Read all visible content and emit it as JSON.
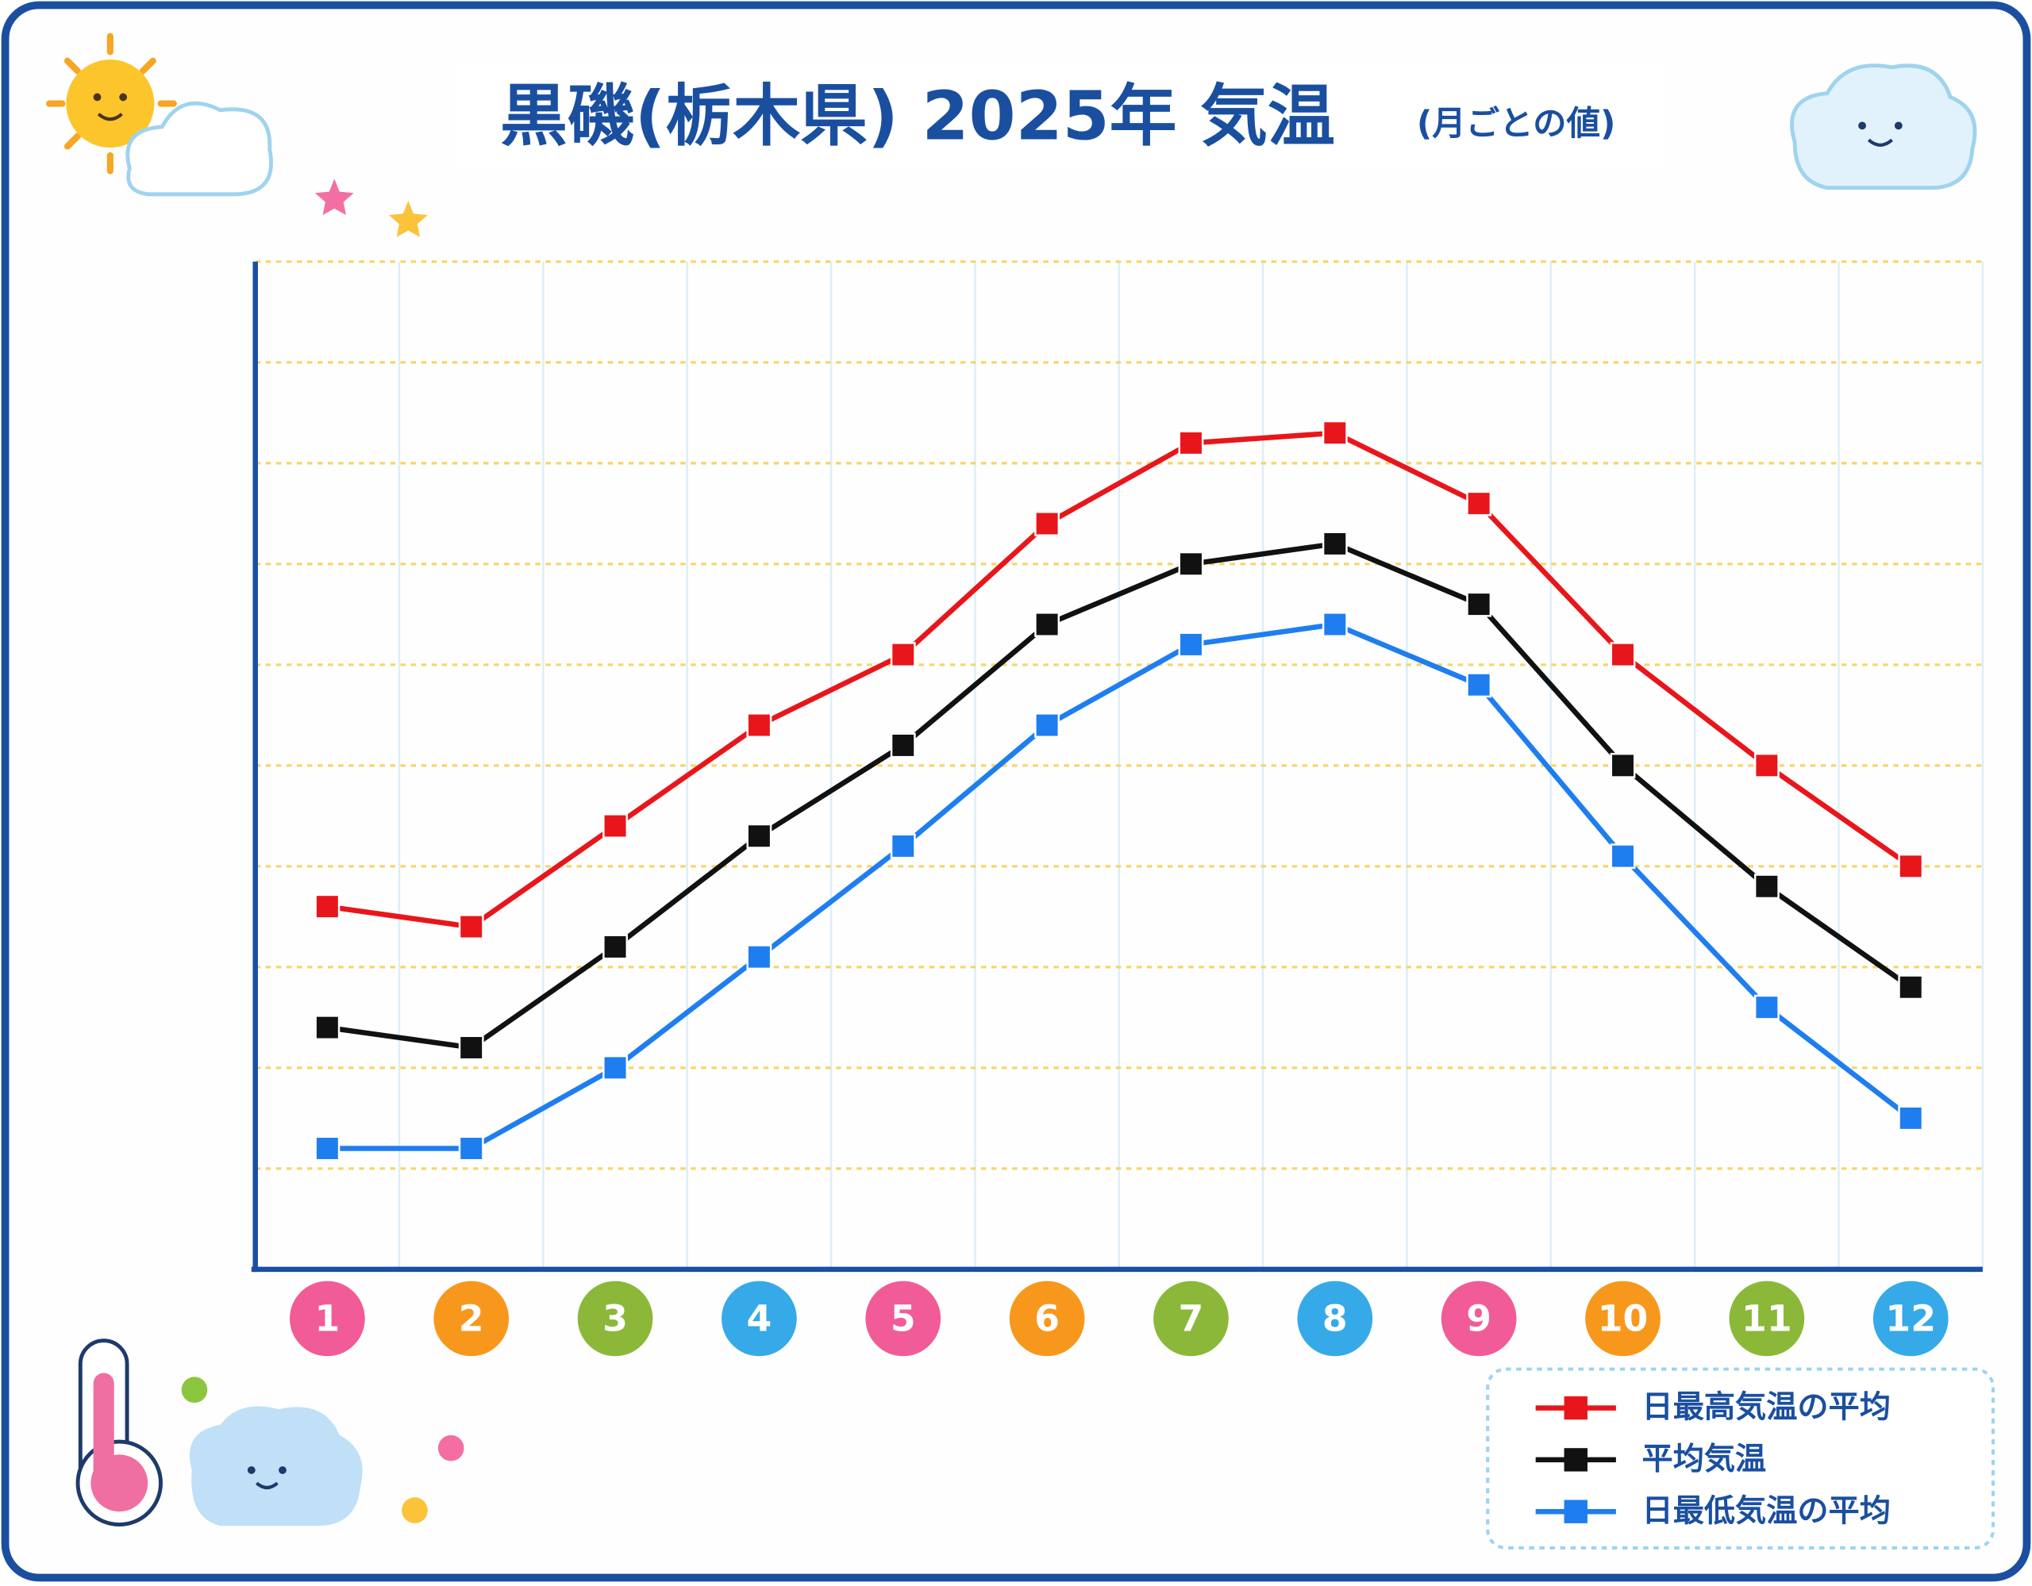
{
  "chart_data": {
    "type": "line",
    "title": "黒磯(栃木県) 2025年 気温",
    "subtitle": "(月ごとの値)",
    "categories": [
      "1",
      "2",
      "3",
      "4",
      "5",
      "6",
      "7",
      "8",
      "9",
      "10",
      "11",
      "12"
    ],
    "series": [
      {
        "name": "日最高気温の平均",
        "color": "#e8161b",
        "values": [
          3.6,
          3.4,
          4.4,
          5.4,
          6.1,
          7.4,
          8.2,
          8.3,
          7.6,
          6.1,
          5.0,
          4.0
        ]
      },
      {
        "name": "平均気温",
        "color": "#111111",
        "values": [
          2.4,
          2.2,
          3.2,
          4.3,
          5.2,
          6.4,
          7.0,
          7.2,
          6.6,
          5.0,
          3.8,
          2.8
        ]
      },
      {
        "name": "日最低気温の平均",
        "color": "#1e7ef0",
        "values": [
          1.2,
          1.2,
          2.0,
          3.1,
          4.2,
          5.4,
          6.2,
          6.4,
          5.8,
          4.1,
          2.6,
          1.5
        ]
      }
    ],
    "ylim": [
      0,
      10
    ],
    "yticks": [
      1,
      2,
      3,
      4,
      5,
      6,
      7,
      8,
      9,
      10
    ],
    "ytick_labels": false,
    "grid": true,
    "legend": "bottom-right"
  }
}
